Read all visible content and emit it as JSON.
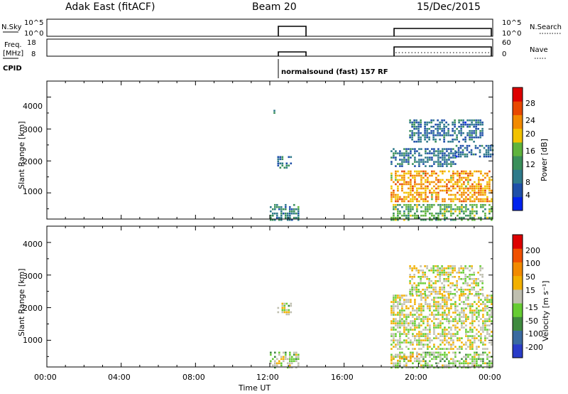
{
  "header": {
    "site": "Adak East (fitACF)",
    "beam": "Beam 20",
    "date": "15/Dec/2015"
  },
  "top_panels": {
    "nsky_label": "N.Sky",
    "nsky_ticks": [
      "10^5",
      "10^0"
    ],
    "nsearch_label": "N.Search",
    "nsearch_ticks": [
      "10^5",
      "10^0"
    ],
    "freq_label": "Freq.",
    "freq_unit": "[MHz]",
    "freq_ticks": [
      "18",
      "8"
    ],
    "nave_label": "Nave",
    "nave_ticks": [
      "60",
      "0"
    ],
    "cpid_label": "CPID",
    "cpid_text": "normalsound (fast) 157 RF"
  },
  "axes": {
    "ylabel": "Slant Range [km]",
    "xlabel": "Time UT",
    "yticks": [
      "4000",
      "3000",
      "2000",
      "1000"
    ],
    "xticks": [
      "00:00",
      "04:00",
      "08:00",
      "12:00",
      "16:00",
      "20:00",
      "00:00"
    ]
  },
  "colorbars": {
    "power_label": "Power [dB]",
    "power_ticks": [
      "28",
      "24",
      "20",
      "16",
      "12",
      "8",
      "4"
    ],
    "velocity_label": "Velocity [m s⁻¹]",
    "velocity_ticks": [
      "200",
      "100",
      "50",
      "15",
      "-15",
      "-50",
      "-100",
      "-200"
    ]
  },
  "colors": {
    "power": [
      "#0022ee",
      "#1f4fa8",
      "#2f7a8a",
      "#3a8f5a",
      "#5fb33d",
      "#f2c200",
      "#f28a00",
      "#e84800",
      "#dd0000"
    ],
    "velocity": [
      "#2a3cc8",
      "#3a6aa0",
      "#3f8a3f",
      "#66cc33",
      "#bfbfb0",
      "#f2b000",
      "#f28a00",
      "#f05000",
      "#dd0000"
    ]
  },
  "chart_data": [
    {
      "type": "heatmap",
      "title": "Power",
      "xlabel": "Time UT",
      "ylabel": "Slant Range [km]",
      "xlim": [
        0,
        24
      ],
      "ylim": [
        180,
        4500
      ],
      "colorbar": {
        "label": "Power [dB]",
        "range": [
          0,
          32
        ]
      },
      "regions": [
        {
          "x": [
            12.0,
            13.6
          ],
          "y": [
            180,
            650
          ],
          "value": 10
        },
        {
          "x": [
            12.4,
            13.2
          ],
          "y": [
            1800,
            2150
          ],
          "value": 8
        },
        {
          "x": [
            12.2,
            12.4
          ],
          "y": [
            3500,
            3600
          ],
          "value": 8
        },
        {
          "x": [
            18.5,
            24.0
          ],
          "y": [
            180,
            650
          ],
          "value": 14
        },
        {
          "x": [
            18.5,
            24.0
          ],
          "y": [
            700,
            1700
          ],
          "value": 22
        },
        {
          "x": [
            18.5,
            22.0
          ],
          "y": [
            1800,
            2400
          ],
          "value": 8
        },
        {
          "x": [
            22.0,
            24.0
          ],
          "y": [
            2100,
            2500
          ],
          "value": 8
        },
        {
          "x": [
            19.5,
            23.5
          ],
          "y": [
            2600,
            3300
          ],
          "value": 8
        }
      ]
    },
    {
      "type": "heatmap",
      "title": "Velocity",
      "xlabel": "Time UT",
      "ylabel": "Slant Range [km]",
      "xlim": [
        0,
        24
      ],
      "ylim": [
        180,
        4500
      ],
      "colorbar": {
        "label": "Velocity [m s⁻¹]",
        "range": [
          -250,
          250
        ]
      },
      "regions": [
        {
          "x": [
            12.0,
            13.6
          ],
          "y": [
            180,
            650
          ],
          "value": -30
        },
        {
          "x": [
            12.4,
            13.2
          ],
          "y": [
            1800,
            2150
          ],
          "value": -20
        },
        {
          "x": [
            18.5,
            24.0
          ],
          "y": [
            180,
            650
          ],
          "value": -30
        },
        {
          "x": [
            18.5,
            20.0
          ],
          "y": [
            400,
            600
          ],
          "value": 60
        },
        {
          "x": [
            18.5,
            24.0
          ],
          "y": [
            700,
            2400
          ],
          "value": 0
        },
        {
          "x": [
            19.5,
            23.5
          ],
          "y": [
            2400,
            3300
          ],
          "value": 0
        }
      ]
    }
  ]
}
